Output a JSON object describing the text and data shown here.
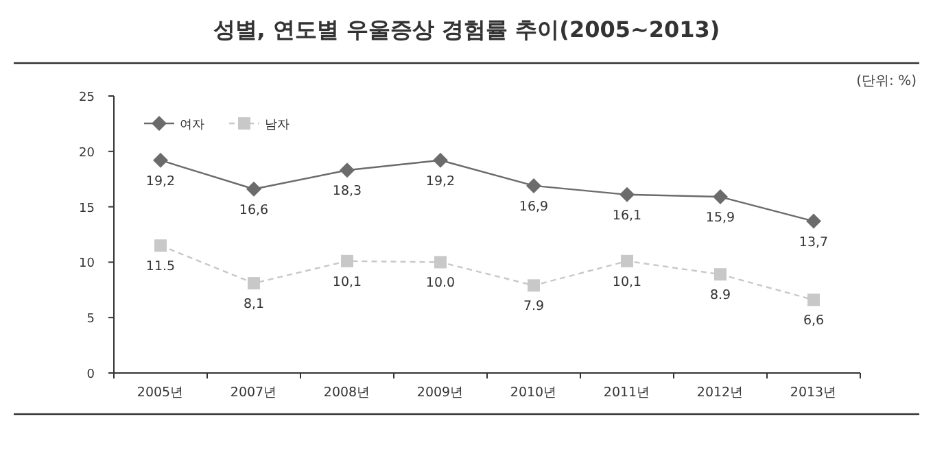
{
  "chart_data": {
    "type": "line",
    "title": "성별, 연도별 우울증상 경험률 추이(2005~2013)",
    "annotations": [
      "(단위: %)"
    ],
    "categories": [
      "2005년",
      "2007년",
      "2008년",
      "2009년",
      "2010년",
      "2011년",
      "2012년",
      "2013년"
    ],
    "series": [
      {
        "name": "여자",
        "color": "#6b6b6b",
        "marker": "diamond",
        "line_style": "solid",
        "values": [
          19.2,
          16.6,
          18.3,
          19.2,
          16.9,
          16.1,
          15.9,
          13.7
        ],
        "value_labels": [
          "19,2",
          "16,6",
          "18,3",
          "19,2",
          "16,9",
          "16,1",
          "15,9",
          "13,7"
        ]
      },
      {
        "name": "남자",
        "color": "#c8c8c8",
        "marker": "square",
        "line_style": "dashed",
        "values": [
          11.5,
          8.1,
          10.1,
          10.0,
          7.9,
          10.1,
          8.9,
          6.6
        ],
        "value_labels": [
          "11.5",
          "8,1",
          "10,1",
          "10.0",
          "7.9",
          "10,1",
          "8.9",
          "6,6"
        ]
      }
    ],
    "ylim": [
      0,
      25
    ],
    "yticks": [
      0,
      5,
      10,
      15,
      20,
      25
    ],
    "grid": false,
    "legend": "top left"
  }
}
